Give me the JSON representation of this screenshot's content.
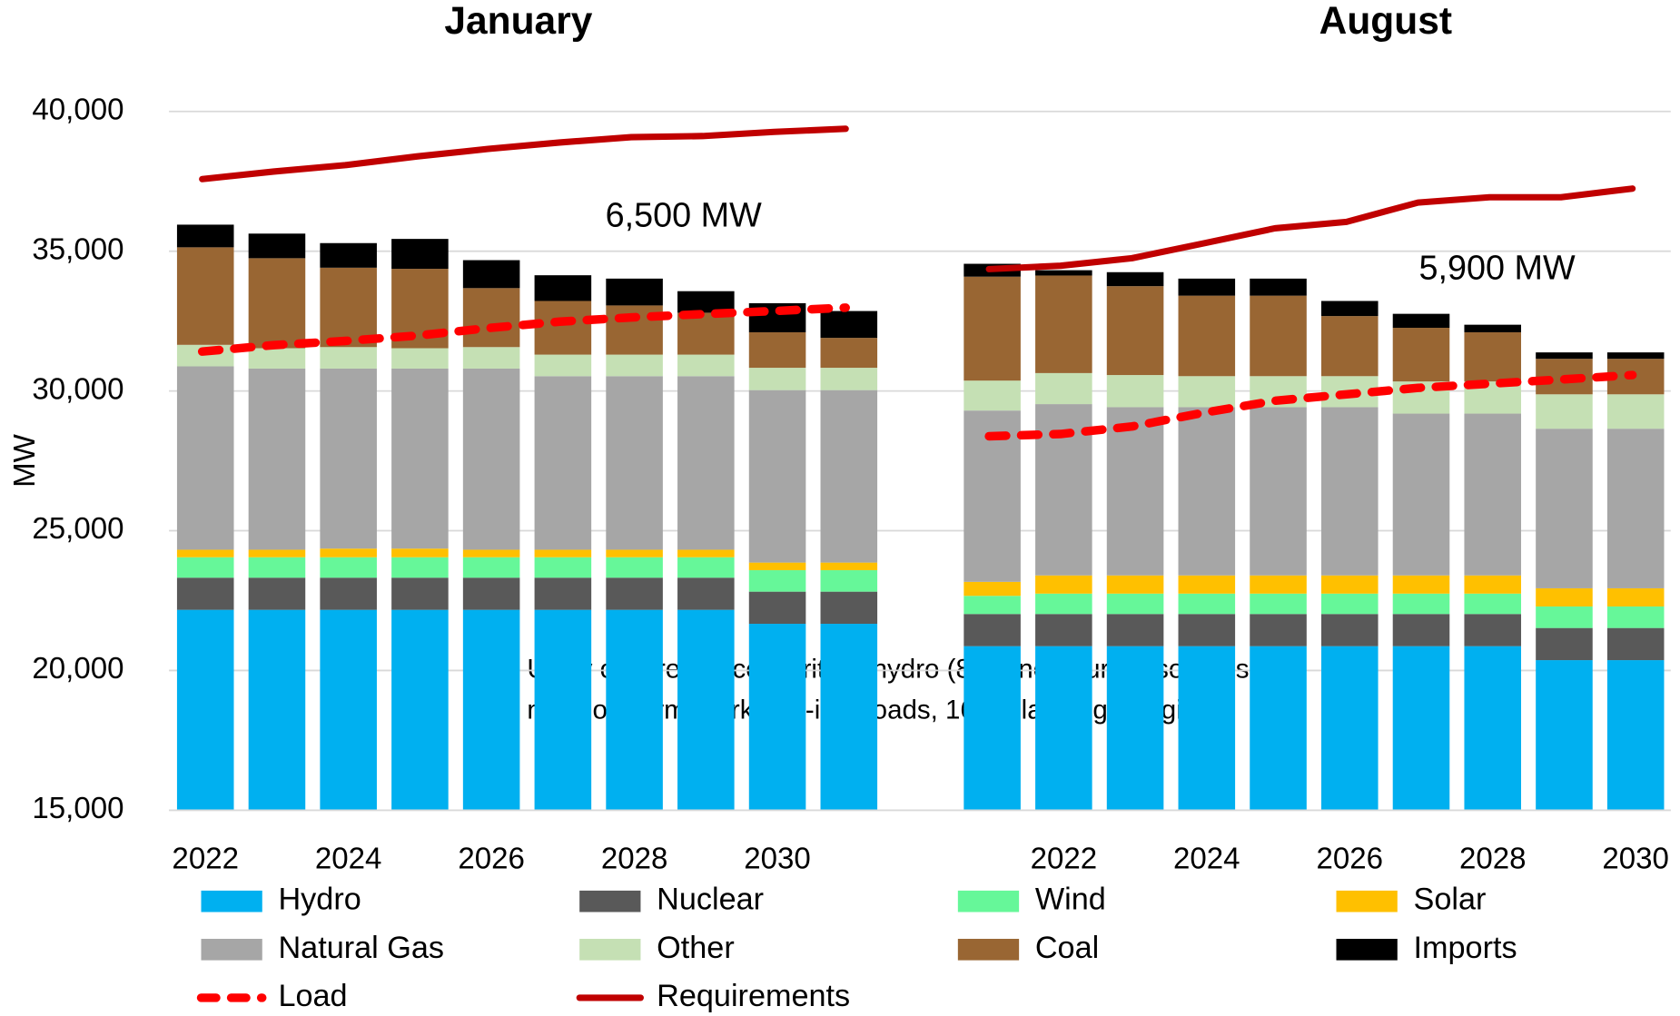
{
  "chart_data": {
    "type": "bar",
    "stacked": true,
    "ylabel": "MW",
    "ylim": [
      15000,
      40000
    ],
    "yticks": [
      {
        "value": 15000,
        "label": "15,000"
      },
      {
        "value": 20000,
        "label": "20,000"
      },
      {
        "value": 25000,
        "label": "25,000"
      },
      {
        "value": 30000,
        "label": "30,000"
      },
      {
        "value": 35000,
        "label": "35,000"
      },
      {
        "value": 40000,
        "label": "40,000"
      }
    ],
    "grid": true,
    "note": [
      "Utility only resources, critical hydro (8%), no future resources,",
      "no short-term market, 1-in-2 loads, 16% planning margin"
    ],
    "panels": [
      {
        "title": "January",
        "annotation": "6,500 MW",
        "categories": [
          "2022",
          null,
          "2024",
          null,
          "2026",
          null,
          "2028",
          null,
          "2030",
          null
        ]
      },
      {
        "title": "August",
        "annotation": "5,900 MW",
        "categories": [
          null,
          "2022",
          null,
          "2024",
          null,
          "2026",
          null,
          "2028",
          null,
          "2030"
        ]
      }
    ],
    "series": [
      {
        "name": "Hydro",
        "color": "#00b0f0",
        "values": [
          [
            22170,
            22170,
            22170,
            22170,
            22170,
            22170,
            22170,
            22170,
            21670,
            21670
          ],
          [
            20870,
            20870,
            20870,
            20870,
            20870,
            20870,
            20870,
            20870,
            20370,
            20370
          ]
        ]
      },
      {
        "name": "Nuclear",
        "color": "#595959",
        "values": [
          [
            1150,
            1150,
            1150,
            1150,
            1150,
            1150,
            1150,
            1150,
            1150,
            1150
          ],
          [
            1150,
            1150,
            1150,
            1150,
            1150,
            1150,
            1150,
            1150,
            1150,
            1150
          ]
        ]
      },
      {
        "name": "Wind",
        "color": "#66f799",
        "values": [
          [
            730,
            730,
            730,
            730,
            730,
            730,
            730,
            730,
            770,
            770
          ],
          [
            650,
            730,
            730,
            730,
            730,
            730,
            730,
            730,
            770,
            770
          ]
        ]
      },
      {
        "name": "Solar",
        "color": "#ffc000",
        "values": [
          [
            270,
            270,
            310,
            310,
            270,
            270,
            270,
            270,
            270,
            270
          ],
          [
            500,
            650,
            650,
            650,
            650,
            650,
            650,
            650,
            650,
            650
          ]
        ]
      },
      {
        "name": "Natural Gas",
        "color": "#a6a6a6",
        "values": [
          [
            6560,
            6480,
            6440,
            6440,
            6480,
            6210,
            6210,
            6210,
            6170,
            6170
          ],
          [
            6130,
            6130,
            6020,
            6020,
            6020,
            6020,
            5790,
            5790,
            5710,
            5710
          ]
        ]
      },
      {
        "name": "Other",
        "color": "#c5e0b4",
        "values": [
          [
            770,
            730,
            770,
            730,
            770,
            770,
            770,
            770,
            800,
            800
          ],
          [
            1070,
            1110,
            1150,
            1110,
            1110,
            1110,
            1150,
            1150,
            1230,
            1230
          ]
        ]
      },
      {
        "name": "Coal",
        "color": "#996633",
        "values": [
          [
            3490,
            3220,
            2840,
            2840,
            2110,
            1920,
            1760,
            1500,
            1270,
            1070
          ],
          [
            3720,
            3490,
            3180,
            2880,
            2880,
            2150,
            1920,
            1760,
            1270,
            1270
          ]
        ]
      },
      {
        "name": "Imports",
        "color": "#000000",
        "values": [
          [
            810,
            880,
            880,
            1070,
            1000,
            920,
            960,
            770,
            1040,
            960
          ],
          [
            460,
            190,
            500,
            610,
            610,
            540,
            500,
            270,
            230,
            230
          ]
        ]
      },
      {
        "name": "Load",
        "type": "line",
        "dashed": true,
        "color": "#ff0000",
        "values": [
          [
            31410,
            31640,
            31790,
            31980,
            32250,
            32480,
            32630,
            32750,
            32860,
            32980
          ],
          [
            28380,
            28460,
            28730,
            29220,
            29650,
            29880,
            30110,
            30260,
            30410,
            30570
          ]
        ]
      },
      {
        "name": "Requirements",
        "type": "line",
        "dashed": false,
        "color": "#c00000",
        "values": [
          [
            37580,
            37850,
            38080,
            38390,
            38660,
            38890,
            39080,
            39120,
            39270,
            39380
          ],
          [
            34360,
            34480,
            34750,
            35280,
            35820,
            36050,
            36740,
            36930,
            36930,
            37240
          ]
        ]
      }
    ]
  }
}
